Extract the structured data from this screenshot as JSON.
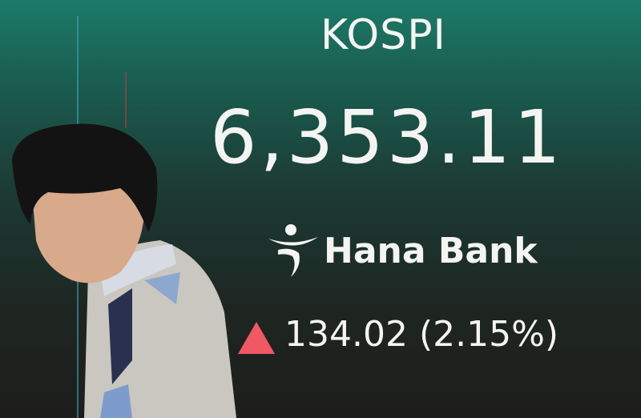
{
  "board": {
    "index_name": "KOSPI",
    "index_value": "6,353.11",
    "brand": "Hana Bank",
    "change": "134.02 (2.15%)",
    "direction_icon": "up-triangle",
    "colors": {
      "up": "#ef5964",
      "background_top": "#1d7a68",
      "background_bottom": "#1d1e1b",
      "text": "#f4f4f2"
    }
  }
}
